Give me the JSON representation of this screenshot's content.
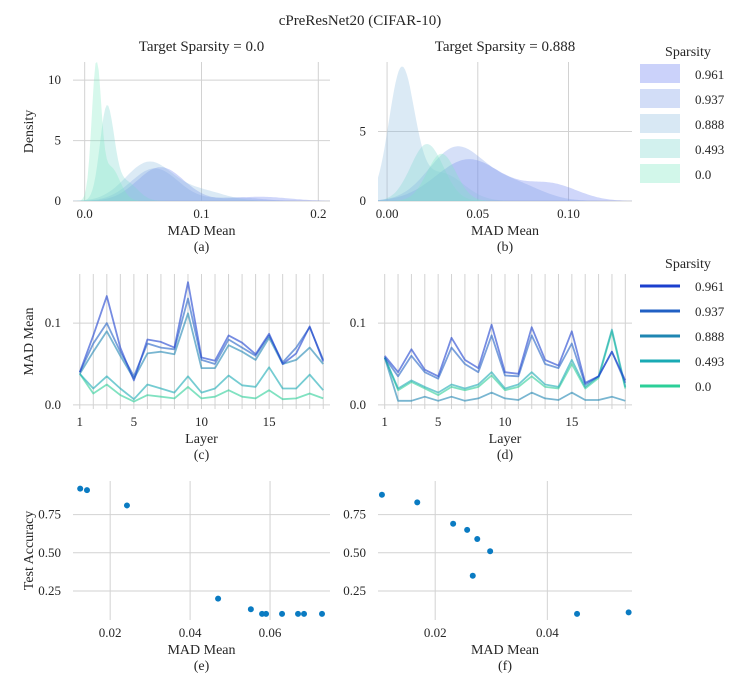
{
  "figure_title": "cPreResNet20 (CIFAR-10)",
  "colors": {
    "density": [
      "#6a7ff0",
      "#7f9fe8",
      "#90bde0",
      "#7fd7cf",
      "#7fe8c3"
    ],
    "lines": [
      "#1b3fce",
      "#2160c4",
      "#1f86b2",
      "#19aab4",
      "#2ccf98"
    ],
    "scatter": "#0a7bc2"
  },
  "chart_data": [
    {
      "id": "a",
      "type": "area",
      "caption": "(a)",
      "title": "Target Sparsity = 0.0",
      "xlabel": "MAD Mean",
      "ylabel": "Density",
      "xlim": [
        -0.01,
        0.21
      ],
      "ylim": [
        0,
        11.5
      ],
      "xticks": [
        0,
        0.1,
        0.2
      ],
      "xticklabels": [
        "0.0",
        "0.1",
        "0.2"
      ],
      "yticks": [
        0,
        5,
        10
      ],
      "yticklabels": [
        "0",
        "5",
        "10"
      ],
      "series": [
        {
          "name": "0.961",
          "peaks": [
            [
              0.065,
              2.8,
              0.02
            ],
            [
              0.15,
              0.35,
              0.025
            ]
          ]
        },
        {
          "name": "0.937",
          "peaks": [
            [
              0.06,
              2.7,
              0.02
            ],
            [
              0.13,
              0.3,
              0.02
            ]
          ]
        },
        {
          "name": "0.888",
          "peaks": [
            [
              0.055,
              3.2,
              0.02
            ],
            [
              0.1,
              0.8,
              0.02
            ]
          ]
        },
        {
          "name": "0.493",
          "peaks": [
            [
              0.019,
              7.5,
              0.006
            ],
            [
              0.035,
              1.6,
              0.01
            ]
          ]
        },
        {
          "name": "0.0",
          "peaks": [
            [
              0.01,
              10.8,
              0.004
            ],
            [
              0.022,
              2.8,
              0.008
            ]
          ]
        }
      ]
    },
    {
      "id": "b",
      "type": "area",
      "caption": "(b)",
      "title": "Target Sparsity = 0.888",
      "xlabel": "MAD Mean",
      "ylabel": "",
      "xlim": [
        -0.005,
        0.135
      ],
      "ylim": [
        0,
        10
      ],
      "xticks": [
        0,
        0.05,
        0.1
      ],
      "xticklabels": [
        "0.00",
        "0.05",
        "0.10"
      ],
      "yticks": [
        0,
        5
      ],
      "yticklabels": [
        "0",
        "5"
      ],
      "series": [
        {
          "name": "0.961",
          "peaks": [
            [
              0.045,
              3.0,
              0.018
            ],
            [
              0.09,
              1.2,
              0.015
            ]
          ]
        },
        {
          "name": "0.937",
          "peaks": [
            [
              0.038,
              3.8,
              0.015
            ],
            [
              0.07,
              1.2,
              0.015
            ]
          ]
        },
        {
          "name": "0.888",
          "peaks": [
            [
              0.008,
              9.3,
              0.007
            ],
            [
              0.03,
              2.0,
              0.012
            ]
          ]
        },
        {
          "name": "0.493",
          "peaks": [
            [
              0.022,
              4.1,
              0.009
            ]
          ]
        },
        {
          "name": "0.0",
          "peaks": [
            [
              0.03,
              3.4,
              0.008
            ]
          ]
        }
      ]
    },
    {
      "id": "c",
      "type": "line",
      "caption": "(c)",
      "title": "",
      "xlabel": "Layer",
      "ylabel": "MAD Mean",
      "xlim": [
        0.5,
        19.5
      ],
      "ylim": [
        -0.005,
        0.16
      ],
      "xticks": [
        1,
        5,
        10,
        15
      ],
      "xticklabels": [
        "1",
        "5",
        "10",
        "15"
      ],
      "yticks": [
        0,
        0.1
      ],
      "yticklabels": [
        "0.0",
        "0.1"
      ],
      "x": [
        1,
        2,
        3,
        4,
        5,
        6,
        7,
        8,
        9,
        10,
        11,
        12,
        13,
        14,
        15,
        16,
        17,
        18,
        19
      ],
      "series": [
        {
          "name": "0.961",
          "values": [
            0.04,
            0.085,
            0.133,
            0.07,
            0.03,
            0.08,
            0.077,
            0.07,
            0.15,
            0.058,
            0.054,
            0.085,
            0.076,
            0.062,
            0.087,
            0.05,
            0.063,
            0.096,
            0.053
          ]
        },
        {
          "name": "0.937",
          "values": [
            0.04,
            0.075,
            0.1,
            0.065,
            0.035,
            0.075,
            0.07,
            0.068,
            0.13,
            0.055,
            0.05,
            0.08,
            0.07,
            0.06,
            0.085,
            0.052,
            0.07,
            0.095,
            0.055
          ]
        },
        {
          "name": "0.888",
          "values": [
            0.038,
            0.065,
            0.09,
            0.06,
            0.032,
            0.063,
            0.065,
            0.062,
            0.112,
            0.045,
            0.045,
            0.073,
            0.065,
            0.055,
            0.082,
            0.05,
            0.055,
            0.07,
            0.05
          ]
        },
        {
          "name": "0.493",
          "values": [
            0.038,
            0.02,
            0.035,
            0.02,
            0.007,
            0.025,
            0.02,
            0.015,
            0.035,
            0.015,
            0.02,
            0.036,
            0.024,
            0.022,
            0.046,
            0.02,
            0.02,
            0.037,
            0.018
          ]
        },
        {
          "name": "0.0",
          "values": [
            0.038,
            0.014,
            0.025,
            0.012,
            0.004,
            0.012,
            0.01,
            0.008,
            0.022,
            0.008,
            0.01,
            0.018,
            0.01,
            0.008,
            0.018,
            0.007,
            0.008,
            0.014,
            0.008
          ]
        }
      ]
    },
    {
      "id": "d",
      "type": "line",
      "caption": "(d)",
      "title": "",
      "xlabel": "Layer",
      "ylabel": "",
      "xlim": [
        0.5,
        19.5
      ],
      "ylim": [
        -0.005,
        0.16
      ],
      "xticks": [
        1,
        5,
        10,
        15
      ],
      "xticklabels": [
        "1",
        "5",
        "10",
        "15"
      ],
      "yticks": [
        0,
        0.1
      ],
      "yticklabels": [
        "0.0",
        "0.1"
      ],
      "x": [
        1,
        2,
        3,
        4,
        5,
        6,
        7,
        8,
        9,
        10,
        11,
        12,
        13,
        14,
        15,
        16,
        17,
        18,
        19
      ],
      "series": [
        {
          "name": "0.961",
          "values": [
            0.06,
            0.04,
            0.068,
            0.043,
            0.035,
            0.082,
            0.055,
            0.045,
            0.098,
            0.04,
            0.038,
            0.095,
            0.055,
            0.048,
            0.09,
            0.027,
            0.035,
            0.065,
            0.03
          ]
        },
        {
          "name": "0.937",
          "values": [
            0.058,
            0.035,
            0.06,
            0.04,
            0.032,
            0.07,
            0.05,
            0.04,
            0.085,
            0.036,
            0.035,
            0.085,
            0.05,
            0.045,
            0.075,
            0.025,
            0.035,
            0.065,
            0.027
          ]
        },
        {
          "name": "0.888",
          "values": [
            0.058,
            0.005,
            0.005,
            0.01,
            0.005,
            0.01,
            0.005,
            0.008,
            0.015,
            0.008,
            0.006,
            0.015,
            0.008,
            0.006,
            0.015,
            0.006,
            0.006,
            0.01,
            0.005
          ]
        },
        {
          "name": "0.493",
          "values": [
            0.058,
            0.02,
            0.03,
            0.022,
            0.015,
            0.025,
            0.02,
            0.025,
            0.04,
            0.02,
            0.025,
            0.04,
            0.025,
            0.022,
            0.055,
            0.022,
            0.035,
            0.092,
            0.022
          ]
        },
        {
          "name": "0.0",
          "values": [
            0.058,
            0.018,
            0.028,
            0.02,
            0.012,
            0.022,
            0.018,
            0.022,
            0.036,
            0.018,
            0.022,
            0.035,
            0.022,
            0.02,
            0.05,
            0.02,
            0.033,
            0.09,
            0.02
          ]
        }
      ]
    },
    {
      "id": "e",
      "type": "scatter",
      "caption": "(e)",
      "title": "",
      "xlabel": "MAD Mean",
      "ylabel": "Test Accuracy",
      "xlim": [
        0.0107,
        0.075
      ],
      "ylim": [
        0.06,
        0.97
      ],
      "xticks": [
        0.02,
        0.04,
        0.06
      ],
      "xticklabels": [
        "0.02",
        "0.04",
        "0.06"
      ],
      "yticks": [
        0.25,
        0.5,
        0.75
      ],
      "yticklabels": [
        "0.25",
        "0.50",
        "0.75"
      ],
      "points": [
        [
          0.0125,
          0.92
        ],
        [
          0.0142,
          0.91
        ],
        [
          0.0242,
          0.81
        ],
        [
          0.047,
          0.2
        ],
        [
          0.0552,
          0.13
        ],
        [
          0.058,
          0.1
        ],
        [
          0.059,
          0.1
        ],
        [
          0.063,
          0.1
        ],
        [
          0.067,
          0.1
        ],
        [
          0.0685,
          0.1
        ],
        [
          0.073,
          0.1
        ]
      ]
    },
    {
      "id": "f",
      "type": "scatter",
      "caption": "(f)",
      "title": "",
      "xlabel": "MAD Mean",
      "ylabel": "",
      "xlim": [
        0.0098,
        0.0551
      ],
      "ylim": [
        0.06,
        0.97
      ],
      "xticks": [
        0.02,
        0.04
      ],
      "xticklabels": [
        "0.02",
        "0.04"
      ],
      "yticks": [
        0.25,
        0.5,
        0.75
      ],
      "yticklabels": [
        "0.25",
        "0.50",
        "0.75"
      ],
      "points": [
        [
          0.0105,
          0.88
        ],
        [
          0.0168,
          0.83
        ],
        [
          0.0232,
          0.69
        ],
        [
          0.0257,
          0.65
        ],
        [
          0.0275,
          0.59
        ],
        [
          0.0298,
          0.51
        ],
        [
          0.0267,
          0.35
        ],
        [
          0.0453,
          0.1
        ],
        [
          0.0545,
          0.11
        ]
      ]
    }
  ],
  "legends": [
    {
      "id": "density",
      "title": "Sparsity",
      "items": [
        "0.961",
        "0.937",
        "0.888",
        "0.493",
        "0.0"
      ]
    },
    {
      "id": "lines",
      "title": "Sparsity",
      "items": [
        "0.961",
        "0.937",
        "0.888",
        "0.493",
        "0.0"
      ]
    }
  ]
}
